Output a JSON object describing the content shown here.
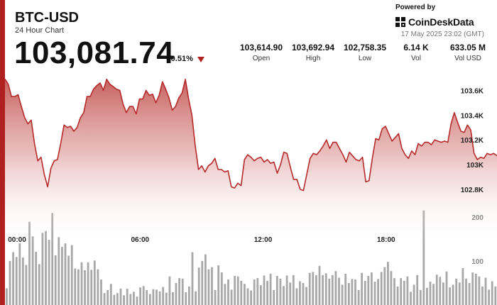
{
  "header": {
    "title": "BTC-USD",
    "subtitle": "24 Hour Chart",
    "price": "103,081.74",
    "change": "-0.51%"
  },
  "stats": [
    {
      "value": "103,614.90",
      "label": "Open"
    },
    {
      "value": "103,692.94",
      "label": "High"
    },
    {
      "value": "102,758.35",
      "label": "Low"
    },
    {
      "value": "6.14 K",
      "label": "Vol"
    },
    {
      "value": "633.05 M",
      "label": "Vol USD"
    }
  ],
  "branding": {
    "powered_by": "Powered by",
    "name": "CoinDeskData",
    "timestamp": "17 May 2025 23:02 (GMT)"
  },
  "colors": {
    "accent": "#b02020",
    "line": "#b52a2a",
    "fill_top": "#c0504d",
    "volume_bar": "#a8a8a8"
  },
  "chart_data": {
    "type": "area",
    "title": "",
    "xlabel": "",
    "ylabel": "",
    "x_tick_labels": [
      "00:00",
      "06:00",
      "12:00",
      "18:00"
    ],
    "y_tick_labels": [
      "102.8K",
      "103K",
      "103.2K",
      "103.4K",
      "103.6K"
    ],
    "y_ticks": [
      102800,
      103000,
      103200,
      103400,
      103600
    ],
    "ylim": [
      102610,
      103700
    ],
    "price": {
      "name": "",
      "values": [
        103692,
        103650,
        103550,
        103550,
        103565,
        103470,
        103380,
        103330,
        103360,
        103170,
        103030,
        103060,
        102920,
        102820,
        102970,
        103030,
        103040,
        103170,
        103320,
        103300,
        103310,
        103270,
        103300,
        103380,
        103420,
        103550,
        103550,
        103610,
        103640,
        103660,
        103600,
        103690,
        103650,
        103630,
        103610,
        103600,
        103490,
        103420,
        103470,
        103470,
        103410,
        103530,
        103530,
        103600,
        103560,
        103570,
        103500,
        103560,
        103670,
        103610,
        103540,
        103440,
        103470,
        103540,
        103580,
        103690,
        103530,
        103400,
        103150,
        102960,
        102990,
        102940,
        102990,
        103010,
        103050,
        102960,
        102960,
        102940,
        102950,
        102820,
        102810,
        102850,
        102830,
        103040,
        103080,
        103060,
        103030,
        103050,
        103060,
        103020,
        103040,
        103010,
        103020,
        102930,
        103000,
        103100,
        103090,
        102980,
        102880,
        102880,
        102800,
        102790,
        102920,
        103050,
        103090,
        103080,
        103110,
        103150,
        103200,
        103130,
        103180,
        103180,
        103130,
        103080,
        103020,
        103100,
        103070,
        103040,
        103030,
        103060,
        102860,
        102870,
        103050,
        103210,
        103200,
        103290,
        103310,
        103250,
        103190,
        103220,
        103250,
        103130,
        103080,
        103050,
        103110,
        103080,
        103170,
        103150,
        103180,
        103180,
        103160,
        103200,
        103190,
        103180,
        103190,
        103180,
        103330,
        103420,
        103340,
        103270,
        103260,
        103320,
        103280,
        103090,
        103040,
        103060,
        103050,
        103090,
        103080,
        103090,
        103070
      ]
    },
    "volume": {
      "name": "",
      "y_tick_labels": [
        "100",
        "200"
      ],
      "y_ticks": [
        100,
        200
      ],
      "max": 290,
      "values": [
        38,
        100,
        120,
        109,
        140,
        108,
        91,
        189,
        156,
        121,
        93,
        164,
        168,
        148,
        209,
        113,
        154,
        132,
        140,
        112,
        136,
        83,
        81,
        97,
        79,
        97,
        80,
        101,
        81,
        58,
        27,
        34,
        48,
        23,
        27,
        37,
        22,
        37,
        25,
        30,
        19,
        40,
        43,
        34,
        25,
        36,
        35,
        31,
        41,
        28,
        65,
        29,
        50,
        61,
        60,
        29,
        42,
        120,
        31,
        85,
        100,
        115,
        81,
        86,
        34,
        90,
        74,
        48,
        58,
        35,
        66,
        65,
        55,
        48,
        38,
        33,
        58,
        61,
        45,
        67,
        55,
        71,
        34,
        66,
        60,
        43,
        67,
        51,
        68,
        38,
        54,
        50,
        41,
        73,
        75,
        68,
        89,
        68,
        72,
        60,
        68,
        77,
        62,
        46,
        71,
        50,
        59,
        58,
        34,
        73,
        55,
        66,
        74,
        53,
        59,
        75,
        86,
        98,
        77,
        61,
        42,
        61,
        55,
        65,
        30,
        46,
        68,
        34,
        215,
        39,
        53,
        48,
        69,
        64,
        51,
        76,
        40,
        46,
        60,
        51,
        84,
        60,
        50,
        74,
        71,
        65,
        42,
        62,
        35,
        54,
        42
      ]
    },
    "grid": false,
    "legend": "none"
  }
}
